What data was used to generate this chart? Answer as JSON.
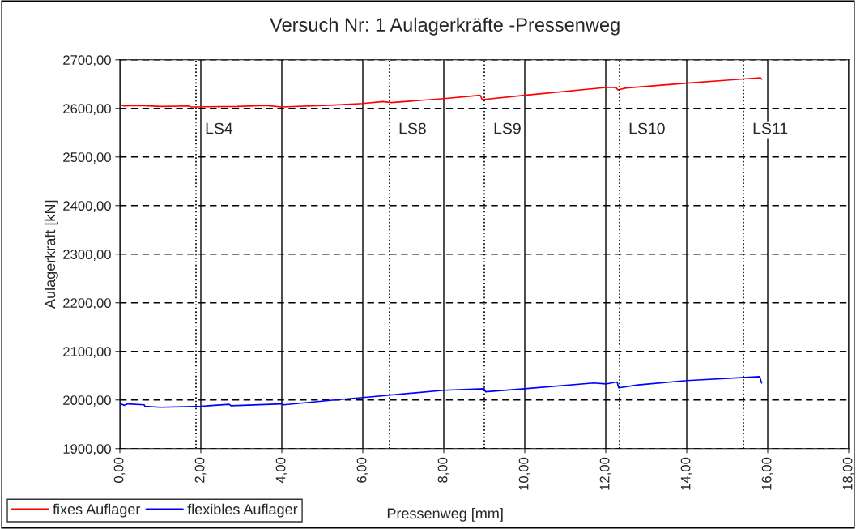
{
  "chart_data": {
    "type": "line",
    "title": "Versuch Nr: 1 Aulagerkräfte -Pressenweg",
    "xlabel": "Pressenweg [mm]",
    "ylabel": "Aulagerkraft [kN]",
    "series": [
      {
        "name": "fixes Auflager",
        "color": "#ff0000",
        "x": [
          0,
          0.1,
          0.5,
          1.0,
          1.7,
          1.75,
          2.9,
          3.6,
          4.0,
          5.3,
          6.0,
          6.5,
          6.7,
          8.0,
          8.9,
          8.95,
          10.0,
          12.0,
          12.25,
          12.3,
          12.5,
          14.0,
          15.0,
          15.82,
          15.85
        ],
        "values": [
          2608,
          2605,
          2606,
          2604,
          2605,
          2603,
          2604,
          2606,
          2603,
          2607,
          2610,
          2614,
          2612,
          2620,
          2627,
          2618,
          2627,
          2643,
          2643,
          2638,
          2642,
          2652,
          2658,
          2663,
          2660
        ]
      },
      {
        "name": "flexibles Auflager",
        "color": "#0000ff",
        "x": [
          0,
          0.1,
          0.2,
          0.6,
          0.62,
          1.0,
          2.0,
          2.7,
          2.75,
          4.0,
          4.05,
          5.3,
          6.0,
          8.0,
          9.0,
          9.03,
          10.0,
          11.7,
          12.0,
          12.28,
          12.32,
          12.8,
          14.0,
          15.8,
          15.85
        ],
        "values": [
          1993,
          1989,
          1992,
          1990,
          1987,
          1985,
          1987,
          1991,
          1988,
          1992,
          1990,
          2000,
          2005,
          2020,
          2023,
          2017,
          2023,
          2035,
          2033,
          2037,
          2025,
          2031,
          2040,
          2048,
          2035
        ]
      }
    ],
    "xlim": [
      0,
      18
    ],
    "xticks": [
      {
        "value": 0,
        "label": "0,00"
      },
      {
        "value": 2,
        "label": "2,00"
      },
      {
        "value": 4,
        "label": "4,00"
      },
      {
        "value": 6,
        "label": "6,00"
      },
      {
        "value": 8,
        "label": "8,00"
      },
      {
        "value": 10,
        "label": "10,00"
      },
      {
        "value": 12,
        "label": "12,00"
      },
      {
        "value": 14,
        "label": "14,00"
      },
      {
        "value": 16,
        "label": "16,00"
      },
      {
        "value": 18,
        "label": "18,00"
      }
    ],
    "ylim": [
      1900,
      2700
    ],
    "yticks": [
      {
        "value": 1900,
        "label": "1900,00"
      },
      {
        "value": 2000,
        "label": "2000,00"
      },
      {
        "value": 2100,
        "label": "2100,00"
      },
      {
        "value": 2200,
        "label": "2200,00"
      },
      {
        "value": 2300,
        "label": "2300,00"
      },
      {
        "value": 2400,
        "label": "2400,00"
      },
      {
        "value": 2500,
        "label": "2500,00"
      },
      {
        "value": 2600,
        "label": "2600,00"
      },
      {
        "value": 2700,
        "label": "2700,00"
      }
    ],
    "ref_lines": [
      {
        "axis": "x",
        "value": 1.88,
        "line_style": "dotted",
        "color": "#000000",
        "label": "LS4"
      },
      {
        "axis": "x",
        "value": 6.66,
        "line_style": "dotted",
        "color": "#000000",
        "label": "LS8"
      },
      {
        "axis": "x",
        "value": 9.0,
        "line_style": "dotted",
        "color": "#000000",
        "label": "LS9"
      },
      {
        "axis": "x",
        "value": 12.34,
        "line_style": "dotted",
        "color": "#000000",
        "label": "LS10"
      },
      {
        "axis": "x",
        "value": 15.4,
        "line_style": "dotted",
        "color": "#000000",
        "label": "LS11"
      }
    ],
    "grid": true,
    "legend": "bottom left",
    "line_style": "solid",
    "marker": "none"
  }
}
